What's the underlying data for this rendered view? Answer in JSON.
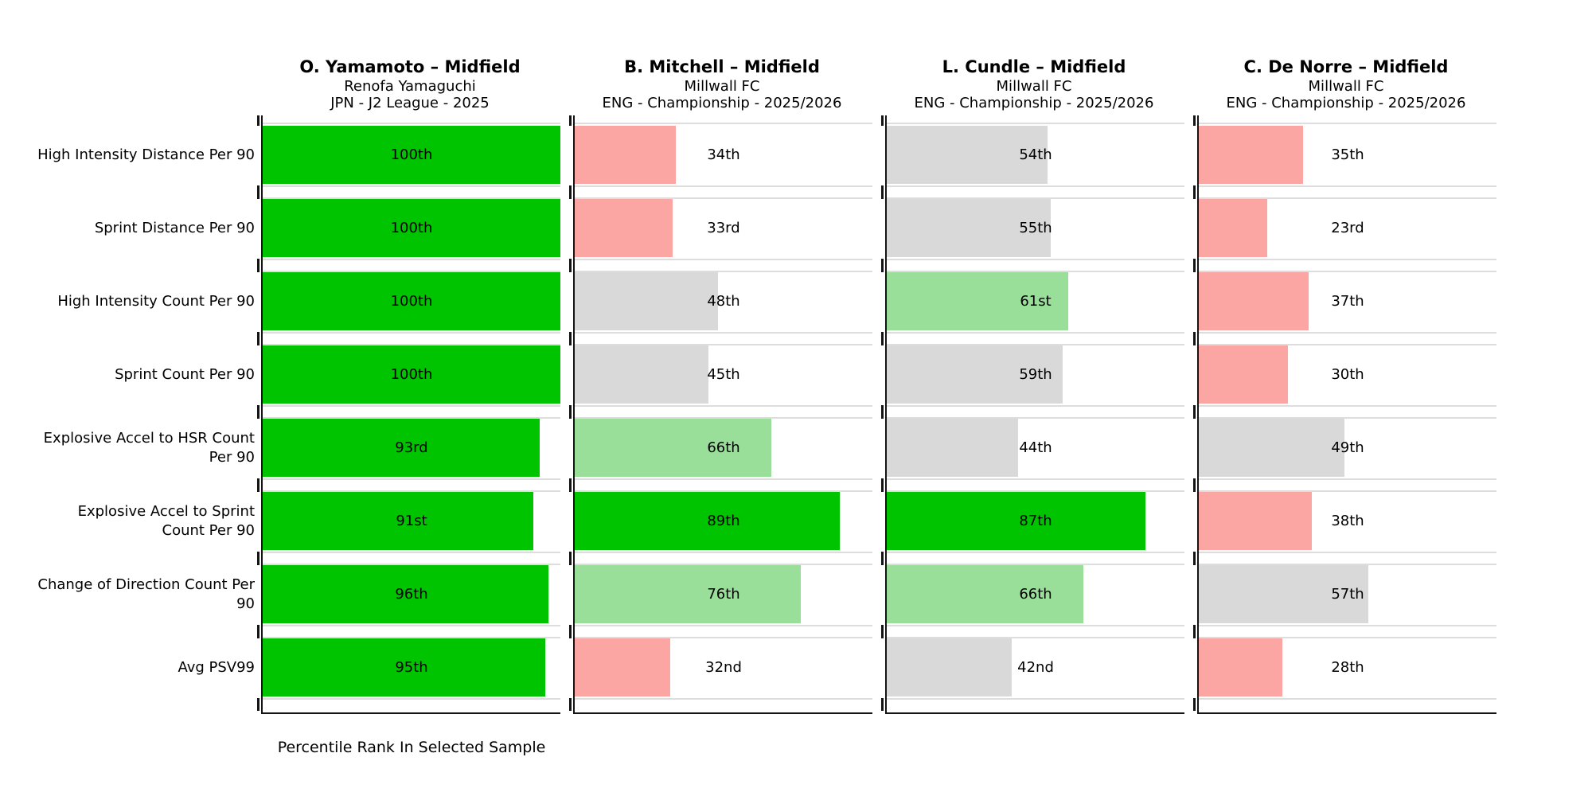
{
  "chart_data": {
    "type": "bar",
    "orientation": "horizontal",
    "title": "",
    "xlabel": "Percentile Rank In Selected Sample",
    "xlim": [
      0,
      100
    ],
    "grid": false,
    "legend": null,
    "categories": [
      "High Intensity Distance Per 90",
      "Sprint Distance Per 90",
      "High Intensity Count Per 90",
      "Sprint Count Per 90",
      "Explosive Accel to HSR Count Per 90",
      "Explosive Accel to Sprint Count Per 90",
      "Change of Direction Count Per 90",
      "Avg PSV99"
    ],
    "metric_label_lines": [
      [
        "High Intensity Distance Per 90"
      ],
      [
        "Sprint Distance Per 90"
      ],
      [
        "High Intensity Count Per 90"
      ],
      [
        "Sprint Count Per 90"
      ],
      [
        "Explosive Accel to HSR Count",
        "Per 90"
      ],
      [
        "Explosive Accel to Sprint",
        "Count Per 90"
      ],
      [
        "Change of Direction Count Per",
        "90"
      ],
      [
        "Avg PSV99"
      ]
    ],
    "series": [
      {
        "name": "O. Yamamoto – Midfield",
        "team": "Renofa Yamaguchi",
        "league": "JPN - J2 League - 2025",
        "values": [
          100,
          100,
          100,
          100,
          93,
          91,
          96,
          95
        ],
        "value_labels": [
          "100th",
          "100th",
          "100th",
          "100th",
          "93rd",
          "91st",
          "96th",
          "95th"
        ]
      },
      {
        "name": "B. Mitchell – Midfield",
        "team": "Millwall FC",
        "league": "ENG - Championship - 2025/2026",
        "values": [
          34,
          33,
          48,
          45,
          66,
          89,
          76,
          32
        ],
        "value_labels": [
          "34th",
          "33rd",
          "48th",
          "45th",
          "66th",
          "89th",
          "76th",
          "32nd"
        ]
      },
      {
        "name": "L. Cundle – Midfield",
        "team": "Millwall FC",
        "league": "ENG - Championship - 2025/2026",
        "values": [
          54,
          55,
          61,
          59,
          44,
          87,
          66,
          42
        ],
        "value_labels": [
          "54th",
          "55th",
          "61st",
          "59th",
          "44th",
          "87th",
          "66th",
          "42nd"
        ]
      },
      {
        "name": "C. De Norre – Midfield",
        "team": "Millwall FC",
        "league": "ENG - Championship - 2025/2026",
        "values": [
          35,
          23,
          37,
          30,
          49,
          38,
          57,
          28
        ],
        "value_labels": [
          "35th",
          "23rd",
          "37th",
          "30th",
          "49th",
          "38th",
          "57th",
          "28th"
        ]
      }
    ],
    "color_thresholds": {
      "green_min": 80,
      "lightgreen_min": 60,
      "gray_min": 40
    },
    "colors": {
      "green": "#00C400",
      "lightgreen": "#99DF99",
      "gray": "#D9D9D9",
      "pink": "#FCA6A3"
    }
  },
  "styles": {
    "spine": "#141414",
    "separator": "#DDDDDD",
    "background": "#FFFFFF",
    "text": "#000000"
  }
}
